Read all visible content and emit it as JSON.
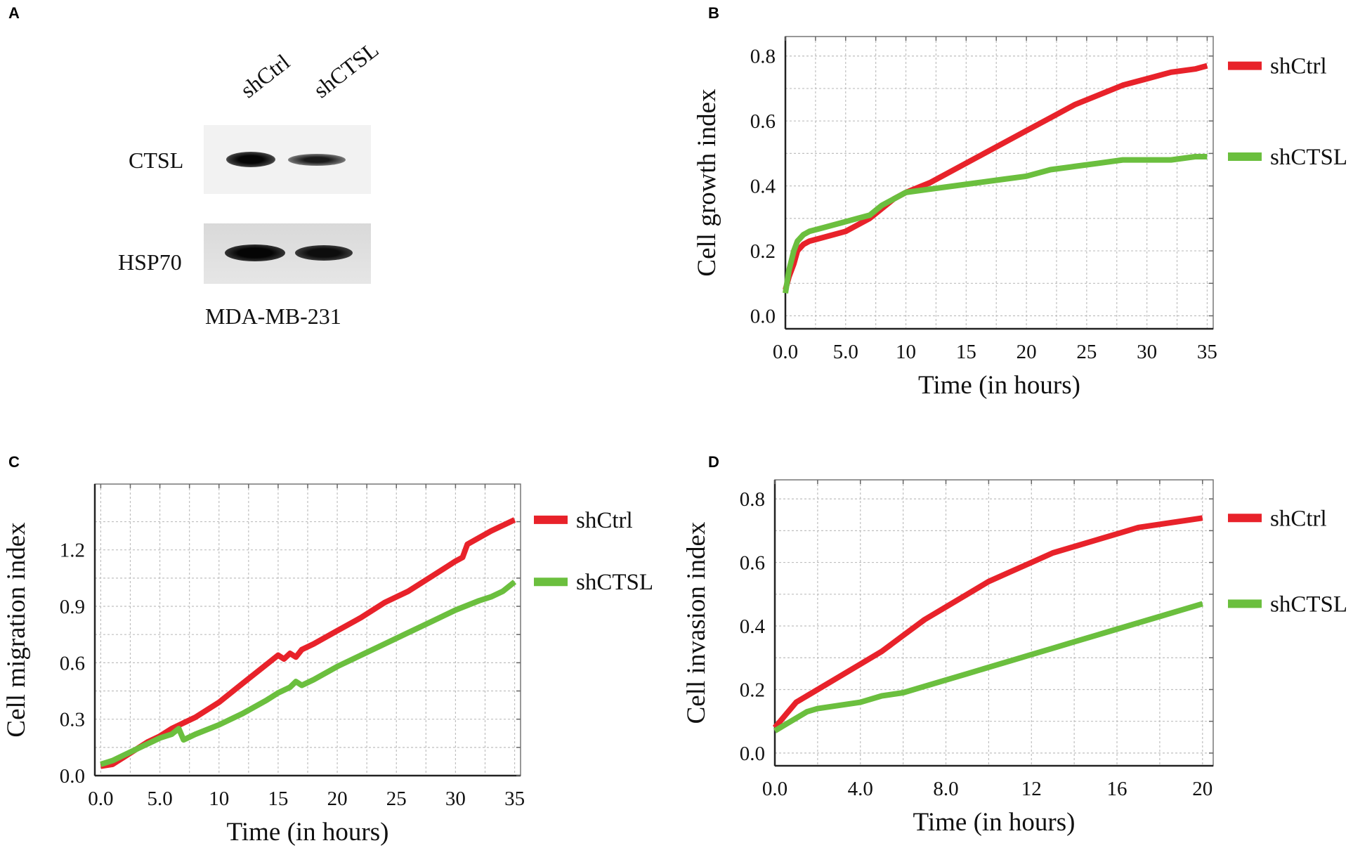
{
  "panel_labels": [
    "A",
    "B",
    "C",
    "D"
  ],
  "blot": {
    "lanes": [
      "shCtrl",
      "shCTSL"
    ],
    "rows": [
      "CTSL",
      "HSP70"
    ],
    "cell_line": "MDA-MB-231"
  },
  "colors": {
    "shCtrl": "#e8222a",
    "shCTSL": "#6bbf3e",
    "grid": "#bfbfbf",
    "axis": "#333333"
  },
  "chart_data": [
    {
      "id": "B",
      "type": "line",
      "title": "",
      "xlabel": "Time (in hours)",
      "ylabel": "Cell growth index",
      "xlim": [
        0,
        35.5
      ],
      "ylim": [
        -0.04,
        0.86
      ],
      "xticks": [
        0,
        5,
        10,
        15,
        20,
        25,
        30,
        35
      ],
      "xtick_labels": [
        "0.0",
        "5.0",
        "10",
        "15",
        "20",
        "25",
        "30",
        "35"
      ],
      "yticks": [
        0,
        0.2,
        0.4,
        0.6,
        0.8
      ],
      "ytick_labels": [
        "0.0",
        "0.2",
        "0.4",
        "0.6",
        "0.8"
      ],
      "grid_x": [
        0,
        2.5,
        5,
        7.5,
        10,
        12.5,
        15,
        17.5,
        20,
        22.5,
        25,
        27.5,
        30,
        32.5,
        35
      ],
      "grid_y": [
        0,
        0.1,
        0.2,
        0.3,
        0.4,
        0.5,
        0.6,
        0.7,
        0.8
      ],
      "legend": [
        "shCtrl",
        "shCTSL"
      ],
      "legend_position": "right",
      "series": [
        {
          "name": "shCtrl",
          "x": [
            0,
            0.3,
            0.7,
            1,
            1.5,
            2,
            3,
            4,
            5,
            6,
            7,
            8,
            9,
            10,
            12,
            14,
            16,
            18,
            20,
            22,
            24,
            26,
            28,
            30,
            32,
            34,
            35
          ],
          "y": [
            0.08,
            0.12,
            0.16,
            0.2,
            0.22,
            0.23,
            0.24,
            0.25,
            0.26,
            0.28,
            0.3,
            0.33,
            0.36,
            0.38,
            0.41,
            0.45,
            0.49,
            0.53,
            0.57,
            0.61,
            0.65,
            0.68,
            0.71,
            0.73,
            0.75,
            0.76,
            0.77
          ]
        },
        {
          "name": "shCTSL",
          "x": [
            0,
            0.3,
            0.7,
            1,
            1.5,
            2,
            3,
            4,
            5,
            6,
            7,
            8,
            9,
            10,
            12,
            14,
            16,
            18,
            20,
            22,
            24,
            26,
            28,
            30,
            32,
            34,
            35
          ],
          "y": [
            0.07,
            0.14,
            0.2,
            0.23,
            0.25,
            0.26,
            0.27,
            0.28,
            0.29,
            0.3,
            0.31,
            0.34,
            0.36,
            0.38,
            0.39,
            0.4,
            0.41,
            0.42,
            0.43,
            0.45,
            0.46,
            0.47,
            0.48,
            0.48,
            0.48,
            0.49,
            0.49
          ]
        }
      ]
    },
    {
      "id": "C",
      "type": "line",
      "title": "",
      "xlabel": "Time (in hours)",
      "ylabel": "Cell migration index",
      "xlim": [
        -0.5,
        35.5
      ],
      "ylim": [
        0,
        1.55
      ],
      "xticks": [
        0,
        5,
        10,
        15,
        20,
        25,
        30,
        35
      ],
      "xtick_labels": [
        "0.0",
        "5.0",
        "10",
        "15",
        "20",
        "25",
        "30",
        "35"
      ],
      "yticks": [
        0,
        0.3,
        0.6,
        0.9,
        1.2
      ],
      "ytick_labels": [
        "0.0",
        "0.3",
        "0.6",
        "0.9",
        "1.2"
      ],
      "grid_x": [
        0,
        2.5,
        5,
        7.5,
        10,
        12.5,
        15,
        17.5,
        20,
        22.5,
        25,
        27.5,
        30,
        32.5,
        35
      ],
      "grid_y": [
        0,
        0.15,
        0.3,
        0.45,
        0.6,
        0.75,
        0.9,
        1.05,
        1.2,
        1.35
      ],
      "legend": [
        "shCtrl",
        "shCTSL"
      ],
      "legend_position": "right",
      "series": [
        {
          "name": "shCtrl",
          "x": [
            0,
            1,
            2,
            3,
            4,
            5,
            6,
            7,
            8,
            10,
            12,
            14,
            15,
            15.5,
            16,
            16.5,
            17,
            18,
            20,
            22,
            24,
            26,
            28,
            30,
            30.6,
            31,
            33,
            35
          ],
          "y": [
            0.05,
            0.06,
            0.1,
            0.14,
            0.18,
            0.21,
            0.25,
            0.28,
            0.31,
            0.39,
            0.49,
            0.59,
            0.64,
            0.62,
            0.65,
            0.63,
            0.67,
            0.7,
            0.77,
            0.84,
            0.92,
            0.98,
            1.06,
            1.14,
            1.16,
            1.23,
            1.3,
            1.36
          ]
        },
        {
          "name": "shCTSL",
          "x": [
            0,
            1,
            2,
            3,
            4,
            5,
            6,
            6.6,
            7,
            8,
            10,
            12,
            14,
            15,
            16,
            16.5,
            17,
            18,
            20,
            22,
            24,
            26,
            28,
            30,
            32,
            33,
            34,
            35
          ],
          "y": [
            0.06,
            0.08,
            0.11,
            0.14,
            0.17,
            0.2,
            0.22,
            0.25,
            0.19,
            0.22,
            0.27,
            0.33,
            0.4,
            0.44,
            0.47,
            0.5,
            0.48,
            0.51,
            0.58,
            0.64,
            0.7,
            0.76,
            0.82,
            0.88,
            0.93,
            0.95,
            0.98,
            1.03
          ]
        }
      ]
    },
    {
      "id": "D",
      "type": "line",
      "title": "",
      "xlabel": "Time (in hours)",
      "ylabel": "Cell invasion index",
      "xlim": [
        0,
        20.5
      ],
      "ylim": [
        -0.04,
        0.86
      ],
      "xticks": [
        0,
        4,
        8,
        12,
        16,
        20
      ],
      "xtick_labels": [
        "0.0",
        "4.0",
        "8.0",
        "12",
        "16",
        "20"
      ],
      "yticks": [
        0,
        0.2,
        0.4,
        0.6,
        0.8
      ],
      "ytick_labels": [
        "0.0",
        "0.2",
        "0.4",
        "0.6",
        "0.8"
      ],
      "grid_x": [
        0,
        2,
        4,
        6,
        8,
        10,
        12,
        14,
        16,
        18,
        20
      ],
      "grid_y": [
        0,
        0.1,
        0.2,
        0.3,
        0.4,
        0.5,
        0.6,
        0.7,
        0.8
      ],
      "legend": [
        "shCtrl",
        "shCTSL"
      ],
      "legend_position": "right",
      "series": [
        {
          "name": "shCtrl",
          "x": [
            0,
            0.5,
            1,
            1.5,
            2,
            3,
            4,
            5,
            6,
            7,
            8,
            9,
            10,
            11,
            12,
            13,
            14,
            15,
            16,
            17,
            18,
            19,
            20
          ],
          "y": [
            0.08,
            0.12,
            0.16,
            0.18,
            0.2,
            0.24,
            0.28,
            0.32,
            0.37,
            0.42,
            0.46,
            0.5,
            0.54,
            0.57,
            0.6,
            0.63,
            0.65,
            0.67,
            0.69,
            0.71,
            0.72,
            0.73,
            0.74
          ]
        },
        {
          "name": "shCTSL",
          "x": [
            0,
            0.5,
            1,
            1.5,
            2,
            3,
            4,
            5,
            6,
            7,
            8,
            9,
            10,
            11,
            12,
            13,
            14,
            15,
            16,
            17,
            18,
            19,
            20
          ],
          "y": [
            0.07,
            0.09,
            0.11,
            0.13,
            0.14,
            0.15,
            0.16,
            0.18,
            0.19,
            0.21,
            0.23,
            0.25,
            0.27,
            0.29,
            0.31,
            0.33,
            0.35,
            0.37,
            0.39,
            0.41,
            0.43,
            0.45,
            0.47
          ]
        }
      ]
    }
  ]
}
